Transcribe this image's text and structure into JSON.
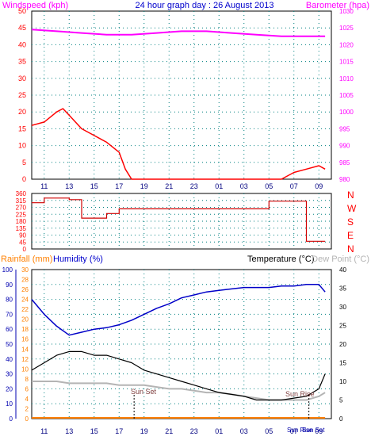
{
  "header": {
    "left_label": "Windspeed (kph)",
    "center_label": "24 hour graph day : 26 August 2013",
    "right_label": "Barometer (hpa)"
  },
  "compass": [
    "N",
    "W",
    "S",
    "E",
    "N"
  ],
  "lower_labels": {
    "rainfall": "Rainfall (mm)",
    "humidity": "Humidity (%)",
    "temperature": "Temperature (°C)",
    "dewpoint": "Dew Point (°C)",
    "sunset": "Sun Set",
    "sunrise": "Sun Rise",
    "sunrise_short": "Sun Rise",
    "sunset_short": "Sun Set"
  },
  "x_ticks": [
    "11",
    "13",
    "15",
    "17",
    "19",
    "21",
    "23",
    "01",
    "03",
    "05",
    "07",
    "09"
  ],
  "colors": {
    "wind_gust": "#ff0000",
    "wind_avg": "#0000ff",
    "wind_low": "#008000",
    "barometer": "#ff00ff",
    "direction": "#d00000",
    "humidity": "#0000c8",
    "temperature": "#000000",
    "dewpoint": "#b4b4b4",
    "rainfall": "#ff8000",
    "axis_left": "#0000b0",
    "axis_mid": "#ff8000",
    "axis_dir": "#ff0000"
  },
  "chart_data": [
    {
      "type": "line",
      "series": [
        {
          "name": "Windspeed (kph)",
          "x": [
            10,
            11,
            12,
            12.5,
            13,
            14,
            15,
            16,
            17,
            17.5,
            18,
            20,
            22,
            24,
            26,
            27,
            28,
            29,
            30,
            31,
            32,
            33,
            33.5
          ],
          "values": [
            16,
            17,
            20,
            21,
            19,
            15,
            13,
            11,
            8,
            3,
            0,
            0,
            0,
            0,
            0,
            0,
            0,
            0,
            0,
            2,
            3,
            4,
            3
          ]
        },
        {
          "name": "Barometer (hpa)",
          "x": [
            10,
            12,
            14,
            16,
            18,
            20,
            22,
            24,
            26,
            28,
            30,
            32,
            33.5
          ],
          "values": [
            1024.5,
            1024,
            1023.5,
            1023,
            1023,
            1023.5,
            1024,
            1024,
            1023.5,
            1023,
            1022.5,
            1022.5,
            1022.5
          ]
        }
      ],
      "x_ticks": [
        "11",
        "13",
        "15",
        "17",
        "19",
        "21",
        "23",
        "01",
        "03",
        "05",
        "07",
        "09"
      ],
      "left_ticks": [
        "0",
        "5",
        "10",
        "15",
        "20",
        "25",
        "30",
        "35",
        "40",
        "45",
        "50"
      ],
      "right_ticks": [
        "980",
        "985",
        "990",
        "995",
        "1000",
        "1005",
        "1010",
        "1015",
        "1020",
        "1025",
        "1030"
      ],
      "ylim_left": [
        0,
        50
      ],
      "ylim_right": [
        980,
        1030
      ]
    },
    {
      "type": "line",
      "series": [
        {
          "name": "Wind direction",
          "x": [
            10,
            11,
            12,
            13,
            14,
            15,
            16,
            17,
            18,
            20,
            22,
            24,
            26,
            28,
            29,
            30,
            31,
            32,
            33,
            33.5
          ],
          "values": [
            300,
            330,
            330,
            320,
            200,
            200,
            230,
            260,
            260,
            260,
            260,
            260,
            260,
            260,
            310,
            310,
            310,
            50,
            50,
            50
          ]
        }
      ],
      "left_ticks": [
        "0",
        "45",
        "90",
        "135",
        "180",
        "225",
        "270",
        "315",
        "360"
      ],
      "ylim": [
        0,
        360
      ]
    },
    {
      "type": "line",
      "series": [
        {
          "name": "Humidity (%)",
          "x": [
            10,
            11,
            12,
            13,
            14,
            15,
            16,
            17,
            18,
            19,
            20,
            21,
            22,
            23,
            24,
            25,
            26,
            27,
            28,
            29,
            30,
            31,
            32,
            33,
            33.5
          ],
          "values": [
            80,
            70,
            62,
            56,
            58,
            60,
            61,
            63,
            66,
            70,
            74,
            77,
            81,
            83,
            85,
            86,
            87,
            88,
            88,
            88,
            89,
            89,
            90,
            90,
            85
          ]
        },
        {
          "name": "Temperature (°C)",
          "x": [
            10,
            11,
            12,
            13,
            14,
            15,
            16,
            17,
            18,
            19,
            20,
            21,
            22,
            23,
            24,
            25,
            26,
            27,
            28,
            29,
            30,
            31,
            32,
            33,
            33.5
          ],
          "values": [
            13,
            15,
            17,
            18,
            18,
            17,
            17,
            16,
            15,
            13,
            12,
            11,
            10,
            9,
            8,
            7,
            6.5,
            6,
            5,
            5,
            5,
            5.5,
            6,
            8,
            12
          ]
        },
        {
          "name": "Dew Point (°C)",
          "x": [
            10,
            11,
            12,
            13,
            14,
            15,
            16,
            17,
            18,
            19,
            20,
            21,
            22,
            23,
            24,
            25,
            26,
            27,
            28,
            29,
            30,
            31,
            32,
            33,
            33.5
          ],
          "values": [
            10,
            10,
            10,
            9.5,
            9.5,
            9.5,
            9.5,
            9,
            9,
            9,
            8.5,
            8,
            8,
            7.5,
            7,
            7,
            6.5,
            6,
            5.5,
            5,
            5,
            5,
            5,
            6,
            7
          ]
        },
        {
          "name": "Rainfall (mm)",
          "x": [
            10,
            33.5
          ],
          "values": [
            0,
            0
          ]
        }
      ],
      "humidity_ticks": [
        "0",
        "10",
        "20",
        "30",
        "40",
        "50",
        "60",
        "70",
        "80",
        "90",
        "100"
      ],
      "rain_ticks": [
        "0",
        "2",
        "4",
        "6",
        "8",
        "10",
        "12",
        "14",
        "16",
        "18",
        "20",
        "22",
        "24",
        "26",
        "28",
        "30"
      ],
      "temp_ticks": [
        "0",
        "5",
        "10",
        "15",
        "20",
        "25",
        "30",
        "35",
        "40"
      ],
      "ylim_humidity": [
        0,
        100
      ],
      "ylim_temp": [
        0,
        40
      ],
      "ylim_rain": [
        0,
        30
      ]
    }
  ]
}
